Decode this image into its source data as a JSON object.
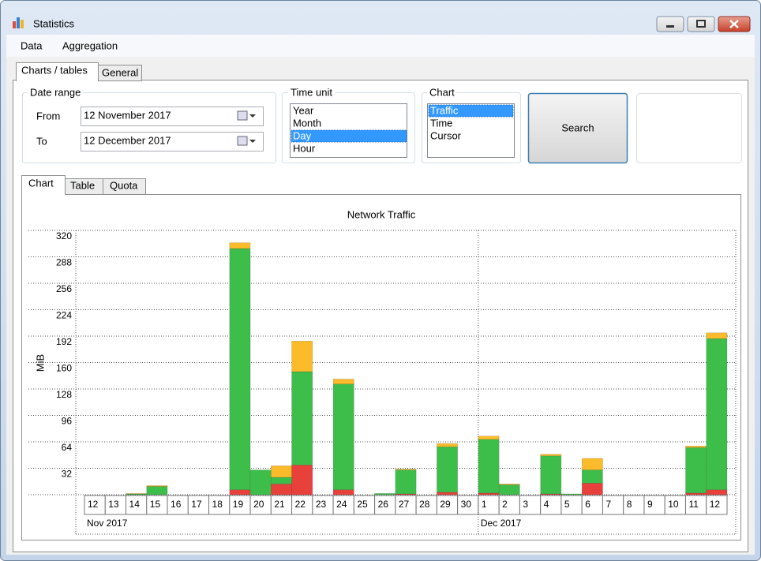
{
  "window": {
    "title": "Statistics"
  },
  "menu": [
    "Data",
    "Aggregation"
  ],
  "tabs": [
    "Charts / tables",
    "General"
  ],
  "date_range": {
    "title": "Date range",
    "from_label": "From",
    "from_value": "12 November 2017",
    "to_label": "To",
    "to_value": "12 December 2017"
  },
  "time_unit": {
    "title": "Time unit",
    "items": [
      {
        "label": "Year"
      },
      {
        "label": "Month"
      },
      {
        "label": "Day",
        "selected": true
      },
      {
        "label": "Hour"
      }
    ]
  },
  "chart_select": {
    "title": "Chart",
    "items": [
      {
        "label": "Traffic",
        "selected": true
      },
      {
        "label": "Time"
      },
      {
        "label": "Cursor"
      }
    ]
  },
  "search_button": "Search",
  "chart_tabs": [
    "Chart",
    "Table",
    "Quota"
  ],
  "chart_data": {
    "type": "bar",
    "stacked": true,
    "title": "Network Traffic",
    "y_label": "MiB",
    "categories": [
      "12",
      "13",
      "14",
      "15",
      "16",
      "17",
      "18",
      "19",
      "20",
      "21",
      "22",
      "23",
      "24",
      "25",
      "26",
      "27",
      "28",
      "29",
      "30",
      "1",
      "2",
      "3",
      "4",
      "5",
      "6",
      "7",
      "8",
      "9",
      "10",
      "11",
      "12"
    ],
    "x_groups": [
      "Nov 2017",
      "Dec 2017"
    ],
    "series": [
      {
        "color": "#e8413c",
        "values": [
          0,
          0,
          0,
          0,
          0,
          0,
          0,
          6,
          0,
          13,
          36,
          0,
          6,
          0,
          0,
          1,
          0,
          3,
          0,
          2,
          0,
          0,
          1,
          0,
          14,
          0,
          0,
          0,
          0,
          2,
          6
        ]
      },
      {
        "color": "#3dbe4b",
        "values": [
          0,
          0,
          1,
          10,
          0,
          0,
          0,
          292,
          30,
          8,
          113,
          0,
          128,
          0,
          1.5,
          29,
          0,
          55,
          0,
          65,
          12,
          0,
          46,
          1,
          16,
          0,
          0,
          0,
          0,
          55,
          183
        ]
      },
      {
        "color": "#fbbb2a",
        "values": [
          0,
          0,
          0.5,
          1,
          0,
          0,
          0,
          7,
          0,
          14,
          37,
          0,
          6,
          0,
          0,
          1,
          0,
          4,
          0,
          4,
          1,
          0,
          2,
          0,
          14,
          0,
          0,
          0,
          0,
          2,
          7
        ]
      }
    ],
    "ylim": [
      0,
      320
    ],
    "yticks": [
      32,
      64,
      96,
      128,
      160,
      192,
      224,
      256,
      288,
      320
    ],
    "grid": true
  }
}
